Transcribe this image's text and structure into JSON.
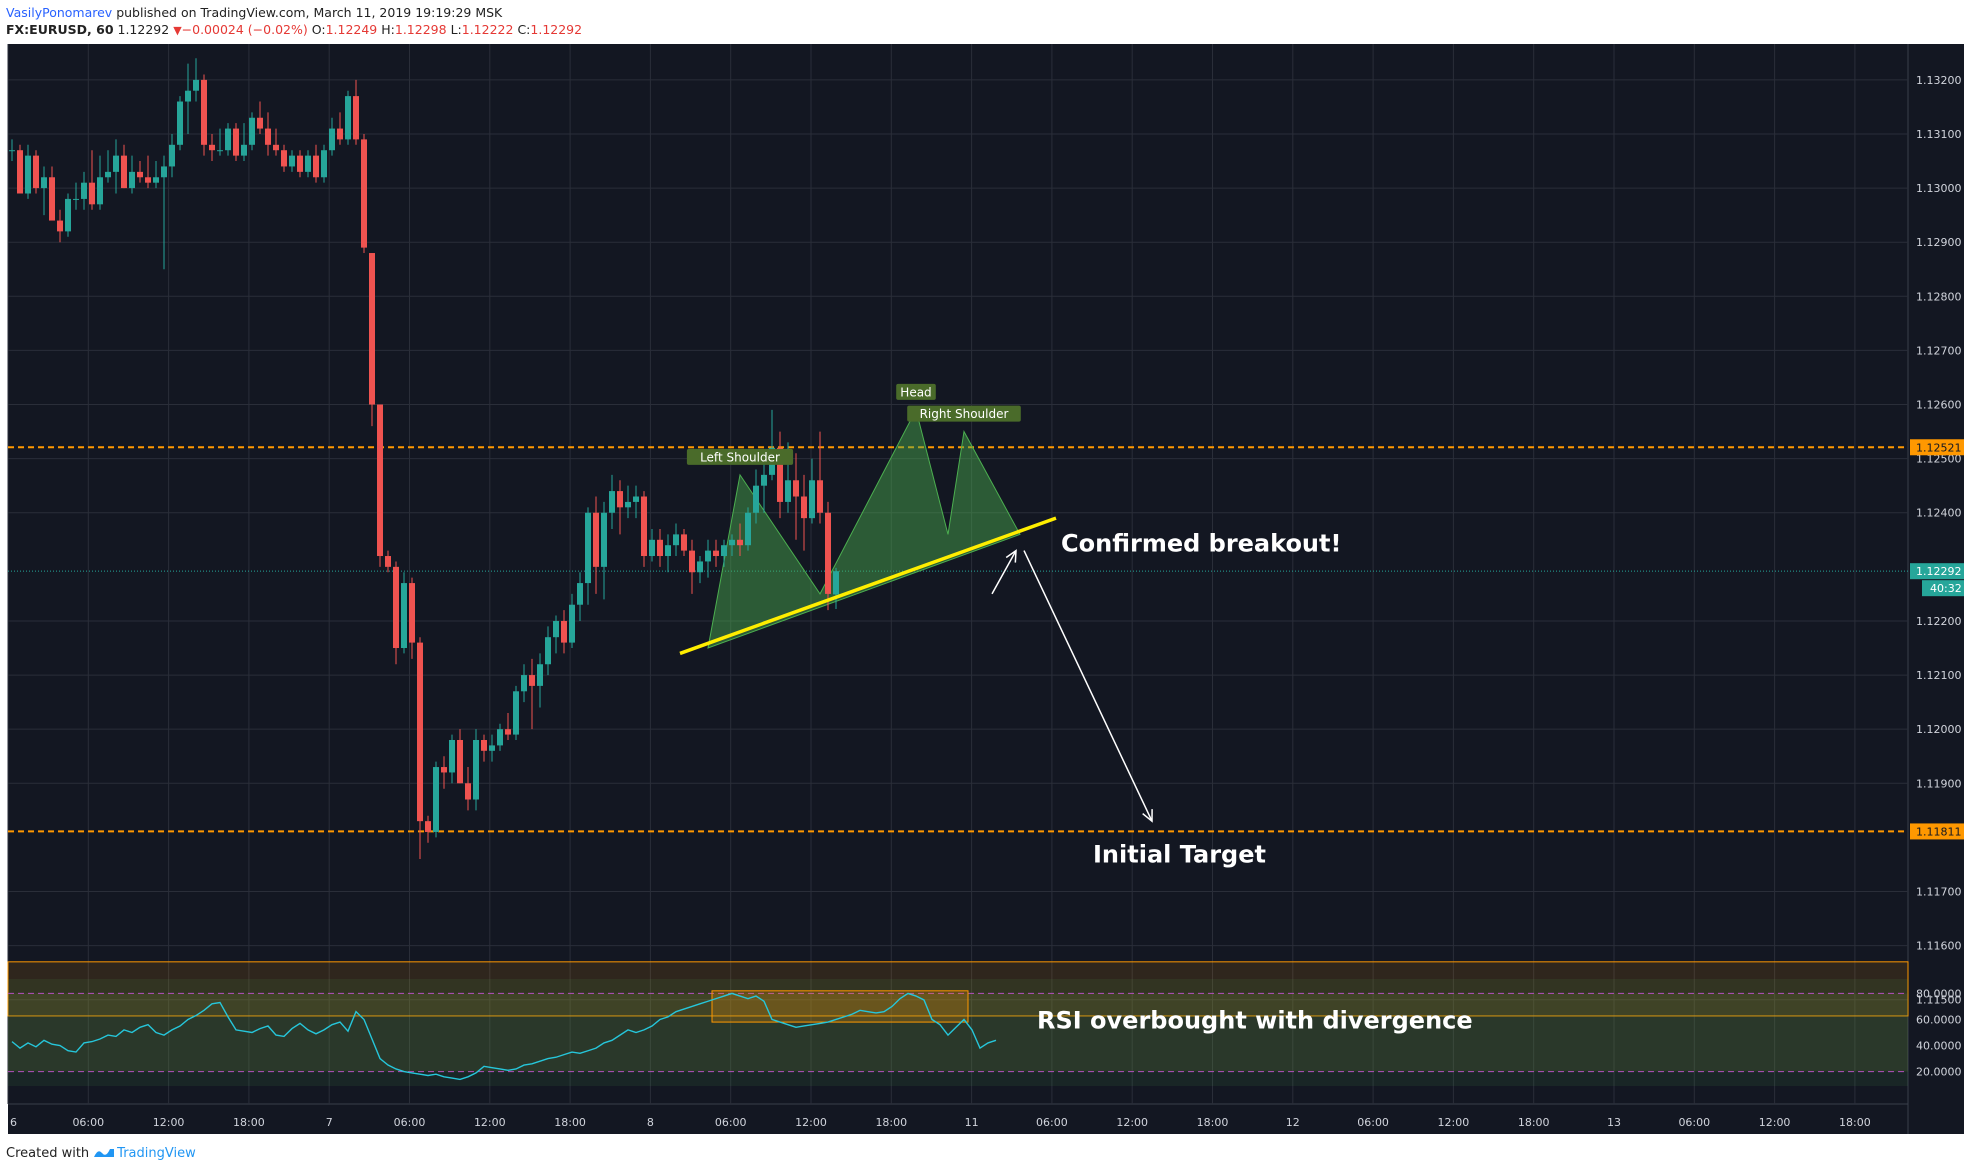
{
  "header": {
    "author": "VasilyPonomarev",
    "published": "published on TradingView.com, March 11, 2019 19:19:29 MSK",
    "symbol": "FX:EURUSD, 60",
    "last": "1.12292",
    "change": "−0.00024 (−0.02%)",
    "o_label": "O:",
    "o_value": "1.12249",
    "h_label": "H:",
    "h_value": "1.12298",
    "l_label": "L:",
    "l_value": "1.12222",
    "c_label": "C:",
    "c_value": "1.12292"
  },
  "footer": {
    "created_with": "Created with",
    "brand": "TradingView"
  },
  "colors": {
    "background": "#131722",
    "grid": "#2a2e39",
    "bull": "#26a69a",
    "bear": "#ef5350",
    "level": "#ff9800",
    "trendline": "#ffee00",
    "pattern": "#4caf50",
    "rsi": "#26c6da",
    "text": "#ffffff"
  },
  "chart_data": {
    "type": "candlestick",
    "symbol": "FX:EURUSD",
    "interval": "60",
    "y_range": [
      1.1142,
      1.1327
    ],
    "price_ticks": [
      "1.13200",
      "1.13100",
      "1.13000",
      "1.12900",
      "1.12800",
      "1.12700",
      "1.12600",
      "1.12500",
      "1.12400",
      "1.12200",
      "1.12100",
      "1.12000",
      "1.11900",
      "1.11700",
      "1.11600",
      "1.11500"
    ],
    "x_ticks": [
      "6",
      "06:00",
      "12:00",
      "18:00",
      "7",
      "06:00",
      "12:00",
      "18:00",
      "8",
      "06:00",
      "12:00",
      "18:00",
      "11",
      "06:00",
      "12:00",
      "18:00",
      "12",
      "06:00",
      "12:00",
      "18:00",
      "13",
      "06:00",
      "12:00",
      "18:00"
    ],
    "candles": [
      {
        "o": 1.1307,
        "h": 1.1309,
        "l": 1.1305,
        "c": 1.1307
      },
      {
        "o": 1.1307,
        "h": 1.1308,
        "l": 1.1299,
        "c": 1.1299
      },
      {
        "o": 1.1299,
        "h": 1.1308,
        "l": 1.1298,
        "c": 1.1306
      },
      {
        "o": 1.1306,
        "h": 1.1307,
        "l": 1.1299,
        "c": 1.13
      },
      {
        "o": 1.13,
        "h": 1.1304,
        "l": 1.1295,
        "c": 1.1302
      },
      {
        "o": 1.1302,
        "h": 1.1304,
        "l": 1.1294,
        "c": 1.1294
      },
      {
        "o": 1.1294,
        "h": 1.1296,
        "l": 1.129,
        "c": 1.1292
      },
      {
        "o": 1.1292,
        "h": 1.1299,
        "l": 1.1291,
        "c": 1.1298
      },
      {
        "o": 1.1298,
        "h": 1.1301,
        "l": 1.1296,
        "c": 1.1298
      },
      {
        "o": 1.1298,
        "h": 1.1303,
        "l": 1.1296,
        "c": 1.1301
      },
      {
        "o": 1.1301,
        "h": 1.1307,
        "l": 1.1296,
        "c": 1.1297
      },
      {
        "o": 1.1297,
        "h": 1.1306,
        "l": 1.1296,
        "c": 1.1302
      },
      {
        "o": 1.1302,
        "h": 1.1307,
        "l": 1.1301,
        "c": 1.1303
      },
      {
        "o": 1.1303,
        "h": 1.1309,
        "l": 1.1299,
        "c": 1.1306
      },
      {
        "o": 1.1306,
        "h": 1.1308,
        "l": 1.13,
        "c": 1.13
      },
      {
        "o": 1.13,
        "h": 1.1306,
        "l": 1.1299,
        "c": 1.1303
      },
      {
        "o": 1.1303,
        "h": 1.1305,
        "l": 1.1301,
        "c": 1.1302
      },
      {
        "o": 1.1302,
        "h": 1.1306,
        "l": 1.13,
        "c": 1.1301
      },
      {
        "o": 1.1301,
        "h": 1.1305,
        "l": 1.13,
        "c": 1.1302
      },
      {
        "o": 1.1302,
        "h": 1.1306,
        "l": 1.1285,
        "c": 1.1304
      },
      {
        "o": 1.1304,
        "h": 1.131,
        "l": 1.1302,
        "c": 1.1308
      },
      {
        "o": 1.1308,
        "h": 1.1317,
        "l": 1.1307,
        "c": 1.1316
      },
      {
        "o": 1.1316,
        "h": 1.1323,
        "l": 1.131,
        "c": 1.1318
      },
      {
        "o": 1.1318,
        "h": 1.1324,
        "l": 1.1316,
        "c": 1.132
      },
      {
        "o": 1.132,
        "h": 1.1321,
        "l": 1.1306,
        "c": 1.1308
      },
      {
        "o": 1.1308,
        "h": 1.131,
        "l": 1.1305,
        "c": 1.1307
      },
      {
        "o": 1.1307,
        "h": 1.1311,
        "l": 1.1306,
        "c": 1.1307
      },
      {
        "o": 1.1307,
        "h": 1.1312,
        "l": 1.1306,
        "c": 1.1311
      },
      {
        "o": 1.1311,
        "h": 1.1312,
        "l": 1.1305,
        "c": 1.1306
      },
      {
        "o": 1.1306,
        "h": 1.1312,
        "l": 1.1305,
        "c": 1.1308
      },
      {
        "o": 1.1308,
        "h": 1.1314,
        "l": 1.1307,
        "c": 1.1313
      },
      {
        "o": 1.1313,
        "h": 1.1316,
        "l": 1.131,
        "c": 1.1311
      },
      {
        "o": 1.1311,
        "h": 1.1314,
        "l": 1.1306,
        "c": 1.1308
      },
      {
        "o": 1.1308,
        "h": 1.1311,
        "l": 1.1306,
        "c": 1.1307
      },
      {
        "o": 1.1307,
        "h": 1.1308,
        "l": 1.1303,
        "c": 1.1304
      },
      {
        "o": 1.1304,
        "h": 1.1307,
        "l": 1.1303,
        "c": 1.1306
      },
      {
        "o": 1.1306,
        "h": 1.1307,
        "l": 1.1302,
        "c": 1.1303
      },
      {
        "o": 1.1303,
        "h": 1.1307,
        "l": 1.1302,
        "c": 1.1306
      },
      {
        "o": 1.1306,
        "h": 1.1308,
        "l": 1.1301,
        "c": 1.1302
      },
      {
        "o": 1.1302,
        "h": 1.1308,
        "l": 1.1301,
        "c": 1.1307
      },
      {
        "o": 1.1307,
        "h": 1.1313,
        "l": 1.1306,
        "c": 1.1311
      },
      {
        "o": 1.1311,
        "h": 1.1314,
        "l": 1.1308,
        "c": 1.1309
      },
      {
        "o": 1.1309,
        "h": 1.1318,
        "l": 1.1308,
        "c": 1.1317
      },
      {
        "o": 1.1317,
        "h": 1.132,
        "l": 1.1308,
        "c": 1.1309
      },
      {
        "o": 1.1309,
        "h": 1.131,
        "l": 1.1288,
        "c": 1.1289
      },
      {
        "o": 1.1288,
        "h": 1.1288,
        "l": 1.1256,
        "c": 1.126
      },
      {
        "o": 1.126,
        "h": 1.126,
        "l": 1.123,
        "c": 1.1232
      },
      {
        "o": 1.1232,
        "h": 1.1233,
        "l": 1.1229,
        "c": 1.123
      },
      {
        "o": 1.123,
        "h": 1.1231,
        "l": 1.1212,
        "c": 1.1215
      },
      {
        "o": 1.1215,
        "h": 1.1229,
        "l": 1.1214,
        "c": 1.1227
      },
      {
        "o": 1.1227,
        "h": 1.1228,
        "l": 1.1213,
        "c": 1.1216
      },
      {
        "o": 1.1216,
        "h": 1.1217,
        "l": 1.1176,
        "c": 1.1183
      },
      {
        "o": 1.1183,
        "h": 1.1184,
        "l": 1.1179,
        "c": 1.1181
      },
      {
        "o": 1.1181,
        "h": 1.1194,
        "l": 1.118,
        "c": 1.1193
      },
      {
        "o": 1.1193,
        "h": 1.1195,
        "l": 1.1189,
        "c": 1.1192
      },
      {
        "o": 1.1192,
        "h": 1.1199,
        "l": 1.119,
        "c": 1.1198
      },
      {
        "o": 1.1198,
        "h": 1.12,
        "l": 1.119,
        "c": 1.119
      },
      {
        "o": 1.119,
        "h": 1.1193,
        "l": 1.1185,
        "c": 1.1187
      },
      {
        "o": 1.1187,
        "h": 1.12,
        "l": 1.1185,
        "c": 1.1198
      },
      {
        "o": 1.1198,
        "h": 1.1199,
        "l": 1.1194,
        "c": 1.1196
      },
      {
        "o": 1.1196,
        "h": 1.1199,
        "l": 1.1194,
        "c": 1.1197
      },
      {
        "o": 1.1197,
        "h": 1.1201,
        "l": 1.1196,
        "c": 1.12
      },
      {
        "o": 1.12,
        "h": 1.1203,
        "l": 1.1198,
        "c": 1.1199
      },
      {
        "o": 1.1199,
        "h": 1.1208,
        "l": 1.1198,
        "c": 1.1207
      },
      {
        "o": 1.1207,
        "h": 1.1212,
        "l": 1.1205,
        "c": 1.121
      },
      {
        "o": 1.121,
        "h": 1.1213,
        "l": 1.12,
        "c": 1.1208
      },
      {
        "o": 1.1208,
        "h": 1.1214,
        "l": 1.1204,
        "c": 1.1212
      },
      {
        "o": 1.1212,
        "h": 1.1219,
        "l": 1.121,
        "c": 1.1217
      },
      {
        "o": 1.1217,
        "h": 1.1221,
        "l": 1.1214,
        "c": 1.122
      },
      {
        "o": 1.122,
        "h": 1.1222,
        "l": 1.1214,
        "c": 1.1216
      },
      {
        "o": 1.1216,
        "h": 1.1225,
        "l": 1.1215,
        "c": 1.1223
      },
      {
        "o": 1.1223,
        "h": 1.1229,
        "l": 1.122,
        "c": 1.1227
      },
      {
        "o": 1.1227,
        "h": 1.1241,
        "l": 1.1223,
        "c": 1.124
      },
      {
        "o": 1.124,
        "h": 1.1243,
        "l": 1.1225,
        "c": 1.123
      },
      {
        "o": 1.123,
        "h": 1.1242,
        "l": 1.1224,
        "c": 1.124
      },
      {
        "o": 1.124,
        "h": 1.1247,
        "l": 1.1237,
        "c": 1.1244
      },
      {
        "o": 1.1244,
        "h": 1.1246,
        "l": 1.1236,
        "c": 1.1241
      },
      {
        "o": 1.1241,
        "h": 1.1245,
        "l": 1.1239,
        "c": 1.1242
      },
      {
        "o": 1.1242,
        "h": 1.1245,
        "l": 1.1239,
        "c": 1.1243
      },
      {
        "o": 1.1243,
        "h": 1.1244,
        "l": 1.123,
        "c": 1.1232
      },
      {
        "o": 1.1232,
        "h": 1.1237,
        "l": 1.1231,
        "c": 1.1235
      },
      {
        "o": 1.1235,
        "h": 1.1237,
        "l": 1.123,
        "c": 1.1232
      },
      {
        "o": 1.1232,
        "h": 1.1236,
        "l": 1.1229,
        "c": 1.1234
      },
      {
        "o": 1.1234,
        "h": 1.1238,
        "l": 1.1232,
        "c": 1.1236
      },
      {
        "o": 1.1236,
        "h": 1.1237,
        "l": 1.1232,
        "c": 1.1233
      },
      {
        "o": 1.1233,
        "h": 1.1235,
        "l": 1.1225,
        "c": 1.1229
      },
      {
        "o": 1.1229,
        "h": 1.1232,
        "l": 1.1227,
        "c": 1.1231
      },
      {
        "o": 1.1231,
        "h": 1.1235,
        "l": 1.1228,
        "c": 1.1233
      },
      {
        "o": 1.1233,
        "h": 1.1235,
        "l": 1.123,
        "c": 1.1232
      },
      {
        "o": 1.1232,
        "h": 1.1235,
        "l": 1.123,
        "c": 1.1234
      },
      {
        "o": 1.1234,
        "h": 1.1236,
        "l": 1.1232,
        "c": 1.1235
      },
      {
        "o": 1.1235,
        "h": 1.1238,
        "l": 1.1232,
        "c": 1.1234
      },
      {
        "o": 1.1234,
        "h": 1.1241,
        "l": 1.1233,
        "c": 1.124
      },
      {
        "o": 1.124,
        "h": 1.1248,
        "l": 1.1238,
        "c": 1.1245
      },
      {
        "o": 1.1245,
        "h": 1.125,
        "l": 1.124,
        "c": 1.1247
      },
      {
        "o": 1.1247,
        "h": 1.1259,
        "l": 1.1246,
        "c": 1.1252
      },
      {
        "o": 1.1252,
        "h": 1.1255,
        "l": 1.1239,
        "c": 1.1242
      },
      {
        "o": 1.1242,
        "h": 1.1253,
        "l": 1.124,
        "c": 1.1246
      },
      {
        "o": 1.1246,
        "h": 1.1251,
        "l": 1.1235,
        "c": 1.1243
      },
      {
        "o": 1.1243,
        "h": 1.1247,
        "l": 1.1233,
        "c": 1.1239
      },
      {
        "o": 1.1239,
        "h": 1.125,
        "l": 1.1238,
        "c": 1.1246
      },
      {
        "o": 1.1246,
        "h": 1.1255,
        "l": 1.1238,
        "c": 1.124
      },
      {
        "o": 1.124,
        "h": 1.1242,
        "l": 1.1222,
        "c": 1.1225
      },
      {
        "o": 1.12249,
        "h": 1.12298,
        "l": 1.12222,
        "c": 1.12292
      }
    ],
    "horizontal_levels": [
      {
        "price": 1.12521,
        "label": "1.12521"
      },
      {
        "price": 1.11811,
        "label": "1.11811"
      }
    ],
    "last_price": {
      "price": 1.12292,
      "label": "1.12292",
      "countdown": "40:32"
    },
    "trendline": {
      "from_bar": 84,
      "from_price": 1.1214,
      "to_bar": 131,
      "to_price": 1.1239
    },
    "head_and_shoulders": {
      "points": [
        {
          "bar": 87,
          "price": 1.1215
        },
        {
          "bar": 91,
          "price": 1.1247
        },
        {
          "bar": 101,
          "price": 1.1225
        },
        {
          "bar": 113,
          "price": 1.1259
        },
        {
          "bar": 117,
          "price": 1.1236
        },
        {
          "bar": 119,
          "price": 1.1255
        },
        {
          "bar": 126,
          "price": 1.1236
        }
      ],
      "labels": [
        {
          "text": "Left Shoulder",
          "bar": 91,
          "price": 1.1247
        },
        {
          "text": "Head",
          "bar": 113,
          "price": 1.1259
        },
        {
          "text": "Right Shoulder",
          "bar": 119,
          "price": 1.1255
        }
      ]
    },
    "arrows": [
      {
        "from_bar": 123,
        "from_price": 1.1225,
        "to_bar": 126,
        "to_price": 1.1233
      },
      {
        "from_bar": 127,
        "from_price": 1.1233,
        "to_bar": 143,
        "to_price": 1.1183
      }
    ],
    "annotations": [
      {
        "text": "Confirmed breakout!",
        "bar": 130,
        "price": 1.12345
      },
      {
        "text": "Initial Target",
        "bar": 134,
        "price": 1.1177
      },
      {
        "text": "RSI overbought with divergence",
        "bar": 127,
        "rsi": 60
      }
    ],
    "lower_panel": {
      "price_from": 1.1157,
      "price_to": 1.1147
    },
    "rsi": {
      "y_range": [
        12,
        88
      ],
      "ticks": [
        "80.0000",
        "60.0000",
        "40.0000",
        "20.0000"
      ],
      "upper_band": 80,
      "lower_band": 20,
      "highlight": {
        "from_bar": 88,
        "to_bar": 120,
        "from_value": 58,
        "to_value": 82
      },
      "values": [
        43,
        38,
        42,
        39,
        44,
        41,
        40,
        36,
        35,
        42,
        43,
        45,
        48,
        47,
        52,
        50,
        54,
        56,
        50,
        48,
        52,
        55,
        60,
        63,
        67,
        72,
        73,
        62,
        52,
        51,
        50,
        53,
        55,
        48,
        47,
        53,
        57,
        52,
        49,
        52,
        56,
        58,
        51,
        66,
        60,
        45,
        30,
        25,
        22,
        20,
        19,
        18,
        17,
        18,
        16,
        15,
        14,
        16,
        19,
        24,
        23,
        22,
        21,
        22,
        25,
        26,
        28,
        30,
        31,
        33,
        35,
        34,
        36,
        38,
        42,
        44,
        48,
        52,
        50,
        52,
        55,
        60,
        62,
        66,
        68,
        70,
        72,
        74,
        76,
        78,
        80,
        78,
        76,
        78,
        74,
        60,
        58,
        56,
        54,
        55,
        56,
        57,
        58,
        60,
        62,
        64,
        67,
        66,
        65,
        66,
        70,
        76,
        80,
        78,
        75,
        60,
        56,
        48,
        54,
        60,
        52,
        38,
        42,
        44
      ]
    }
  }
}
